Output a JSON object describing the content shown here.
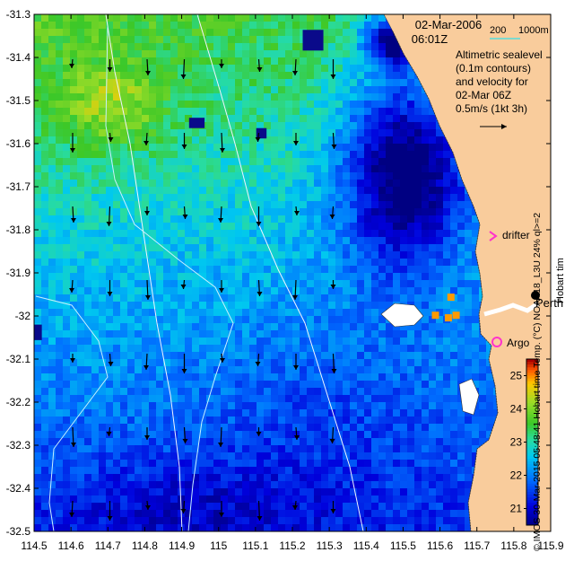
{
  "map": {
    "x_axis": {
      "min": 114.5,
      "max": 115.9,
      "step": 0.1,
      "ticks": [
        "114.5",
        "114.6",
        "114.7",
        "114.8",
        "114.9",
        "115",
        "115.1",
        "115.2",
        "115.3",
        "115.4",
        "115.5",
        "115.6",
        "115.7",
        "115.8",
        "115.9"
      ]
    },
    "y_axis": {
      "min": -32.5,
      "max": -31.3,
      "step": 0.1,
      "ticks": [
        "-31.3",
        "-31.4",
        "-31.5",
        "-31.6",
        "-31.7",
        "-31.8",
        "-31.9",
        "-32",
        "-32.1",
        "-32.2",
        "-32.3",
        "-32.4",
        "-32.5"
      ]
    },
    "date_line1": "02-Mar-2006",
    "date_line2": "06:01Z",
    "isobath_label_200": "200",
    "isobath_label_1000": "1000m",
    "info_lines": [
      "Altimetric sealevel",
      "(0.1m contours)",
      "and velocity for",
      "02-Mar 06Z",
      "0.5m/s (1kt 3h)"
    ],
    "labels": {
      "drifter": "drifter",
      "argo": "Argo",
      "perth": "Perth",
      "hobart": "Hobart tim"
    },
    "colorbar": {
      "min": 20.5,
      "max": 25.5,
      "ticks": [
        "21",
        "22",
        "23",
        "24",
        "25"
      ]
    },
    "vertical_caption": "© IMOS 30-Mar-2015 05:48:41 Hobart time   Temp. (°C) NOAA18_L3U 24% ql>=2",
    "colors": {
      "land": "#f9cc9c",
      "missing": "#ffffff",
      "contour": "#e8f0ff",
      "isobath_legend": "#55dddd",
      "drifter": "#ff33cc",
      "argo": "#ff33cc"
    }
  }
}
